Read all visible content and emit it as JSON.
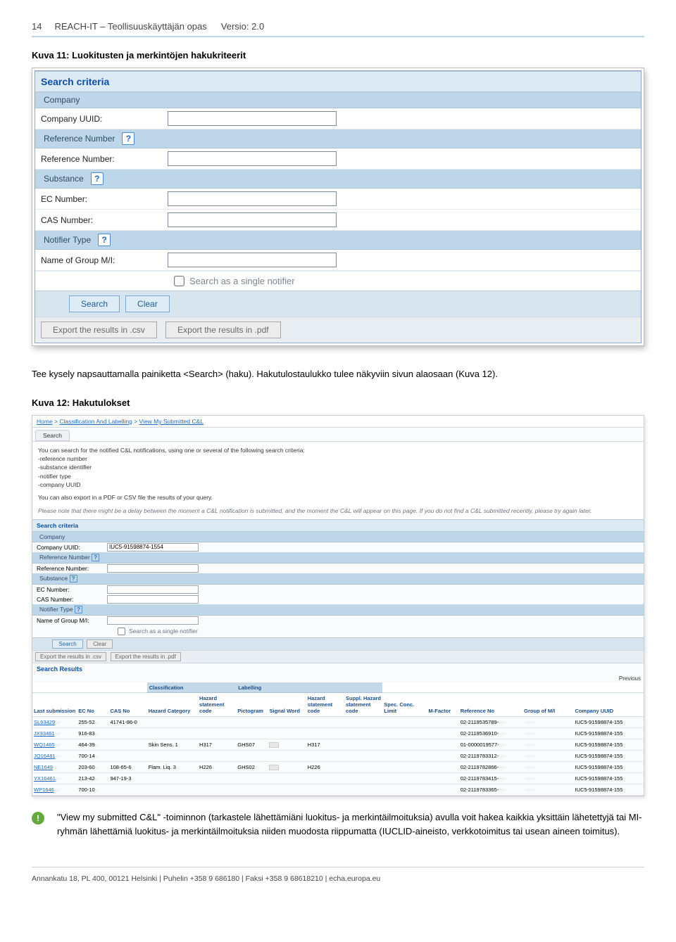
{
  "header": {
    "page_no": "14",
    "title": "REACH-IT – Teollisuuskäyttäjän opas",
    "version": "Versio: 2.0"
  },
  "kuva11_title": "Kuva 11: Luokitusten ja merkintöjen hakukriteerit",
  "panel1": {
    "title": "Search criteria",
    "sub_company": "Company",
    "company_uuid": "Company UUID:",
    "sub_ref": "Reference Number",
    "ref_no": "Reference Number:",
    "sub_substance": "Substance",
    "ec_no": "EC Number:",
    "cas_no": "CAS Number:",
    "sub_notifier": "Notifier Type",
    "group_mi": "Name of Group M/I:",
    "single_notifier": "Search as a single notifier",
    "search": "Search",
    "clear": "Clear",
    "export_csv": "Export the results in .csv",
    "export_pdf": "Export the results in .pdf",
    "q": "?"
  },
  "para1": "Tee kysely napsauttamalla painiketta <Search> (haku). Hakutulostaulukko tulee näkyviin sivun alaosaan (Kuva 12).",
  "kuva12_title": "Kuva 12: Hakutulokset",
  "results": {
    "breadcrumb_home": "Home",
    "breadcrumb_cl": "Classification And Labelling",
    "breadcrumb_view": "View My Submitted C&L",
    "tab": "Search",
    "intro1": "You can search for the notified C&L notifications, using one or several of the following search criteria:",
    "intro_li1": "-reference number",
    "intro_li2": "-substance identifier",
    "intro_li3": "-notifier type",
    "intro_li4": "-company UUID",
    "intro2": "You can also export in a PDF or CSV file the results of your query.",
    "intro_ital": "Please note that there might be a delay between the moment a C&L notification is submitted, and the moment the C&L will appear on this page. If you do not find a C&L submitted recently, please try again later.",
    "sc": {
      "title": "Search criteria",
      "sub_company": "Company",
      "company_uuid": "Company UUID:",
      "company_uuid_val": "IUC5-91598874-1554",
      "sub_ref": "Reference Number",
      "ref_no": "Reference Number:",
      "sub_substance": "Substance",
      "ec_no": "EC Number:",
      "cas_no": "CAS Number:",
      "sub_notifier": "Notifier Type",
      "group_mi": "Name of Group M/I:",
      "single_notifier": "Search as a single notifier",
      "search": "Search",
      "clear": "Clear",
      "export_csv": "Export the results in .csv",
      "export_pdf": "Export the results in .pdf"
    },
    "sr_title": "Search Results",
    "prev": "Previous",
    "th": {
      "class": "Classification",
      "lab": "Labelling",
      "last": "Last submission",
      "ec": "EC No",
      "cas": "CAS No",
      "hazcat": "Hazard Category",
      "hazstmt": "Hazard statement code",
      "pict": "Pictogram",
      "sig": "Signal Word",
      "hazstmt2": "Hazard statement code",
      "supp": "Suppl. Hazard statement code",
      "spec": "Spec. Conc. Limit",
      "mfact": "M-Factor",
      "ref": "Reference No",
      "grp": "Group of M/I",
      "cu": "Company UUID"
    },
    "rows": [
      {
        "sub": "SL93429",
        "ec": "255-52",
        "cas": "41741-86-0",
        "hc": "",
        "hs": "",
        "pi": "",
        "sw": "",
        "h2": "",
        "ref": "02-2119535789-",
        "cu": "IUC5-91598874-155"
      },
      {
        "sub": "JX93461",
        "ec": "916-83",
        "cas": "",
        "hc": "",
        "hs": "",
        "pi": "",
        "sw": "",
        "h2": "",
        "ref": "02-2119536910-",
        "cu": "IUC5-91598874-155"
      },
      {
        "sub": "WQ1465",
        "ec": "464-39",
        "cas": "",
        "hc": "Skin Sens. 1",
        "hs": "H317",
        "pi": "GHS07",
        "sw": "Wng",
        "h2": "H317",
        "ref": "01-0000019577-",
        "cu": "IUC5-91598874-155"
      },
      {
        "sub": "JQ16481",
        "ec": "700-14",
        "cas": "",
        "hc": "",
        "hs": "",
        "pi": "",
        "sw": "",
        "h2": "",
        "ref": "02-2119783312-",
        "cu": "IUC5-91598874-155"
      },
      {
        "sub": "NE1649",
        "ec": "203-60",
        "cas": "108-65-6",
        "hc": "Flam. Liq. 3",
        "hs": "H226",
        "pi": "GHS02",
        "sw": "Wng",
        "h2": "H226",
        "ref": "02-2119782866-",
        "cu": "IUC5-91598874-155"
      },
      {
        "sub": "YX16461",
        "ec": "213-42",
        "cas": "947-19-3",
        "hc": "",
        "hs": "",
        "pi": "",
        "sw": "",
        "h2": "",
        "ref": "02-2119783415-",
        "cu": "IUC5-91598874-155"
      },
      {
        "sub": "WP1646",
        "ec": "700-10",
        "cas": "",
        "hc": "",
        "hs": "",
        "pi": "",
        "sw": "",
        "h2": "",
        "ref": "02-2119783365-",
        "cu": "IUC5-91598874-155"
      }
    ]
  },
  "info_text": "\"View my submitted C&L\" -toiminnon (tarkastele lähettämiäni luokitus- ja merkintäilmoituksia) avulla voit hakea kaikkia yksittäin lähetettyjä tai MI-ryhmän lähettämiä luokitus- ja merkintäilmoituksia niiden muodosta riippumatta (IUCLID-aineisto, verkkotoimitus tai usean aineen toimitus).",
  "footer": "Annankatu 18, PL 400, 00121 Helsinki | Puhelin +358 9 686180 | Faksi +358 9 68618210 | echa.europa.eu"
}
